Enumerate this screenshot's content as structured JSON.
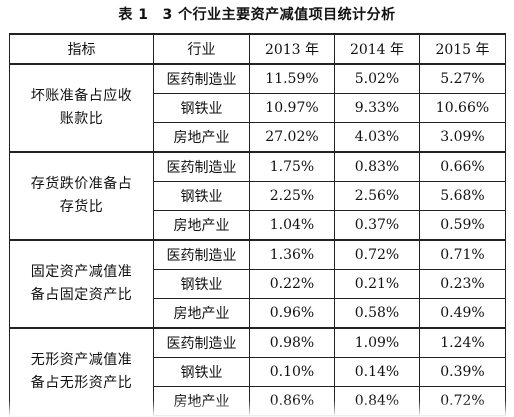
{
  "caption": {
    "label": "表 1",
    "title": "3 个行业主要资产减值项目统计分析"
  },
  "chart_data": {
    "type": "table",
    "title": "3 个行业主要资产减值项目统计分析",
    "headers": [
      "指标",
      "行业",
      "2013 年",
      "2014 年",
      "2015 年"
    ],
    "groups": [
      {
        "metric": "坏账准备占应收账款比",
        "rows": [
          {
            "industry": "医药制造业",
            "values": [
              "11.59%",
              "5.02%",
              "5.27%"
            ]
          },
          {
            "industry": "钢铁业",
            "values": [
              "10.97%",
              "9.33%",
              "10.66%"
            ]
          },
          {
            "industry": "房地产业",
            "values": [
              "27.02%",
              "4.03%",
              "3.09%"
            ]
          }
        ]
      },
      {
        "metric": "存货跌价准备占存货比",
        "rows": [
          {
            "industry": "医药制造业",
            "values": [
              "1.75%",
              "0.83%",
              "0.66%"
            ]
          },
          {
            "industry": "钢铁业",
            "values": [
              "2.25%",
              "2.56%",
              "5.68%"
            ]
          },
          {
            "industry": "房地产业",
            "values": [
              "1.04%",
              "0.37%",
              "0.59%"
            ]
          }
        ]
      },
      {
        "metric": "固定资产减值准备占固定资产比",
        "rows": [
          {
            "industry": "医药制造业",
            "values": [
              "1.36%",
              "0.72%",
              "0.71%"
            ]
          },
          {
            "industry": "钢铁业",
            "values": [
              "0.22%",
              "0.21%",
              "0.23%"
            ]
          },
          {
            "industry": "房地产业",
            "values": [
              "0.96%",
              "0.58%",
              "0.49%"
            ]
          }
        ]
      },
      {
        "metric": "无形资产减值准备占无形资产比",
        "rows": [
          {
            "industry": "医药制造业",
            "values": [
              "0.98%",
              "1.09%",
              "1.24%"
            ]
          },
          {
            "industry": "钢铁业",
            "values": [
              "0.10%",
              "0.14%",
              "0.39%"
            ]
          },
          {
            "industry": "房地产业",
            "values": [
              "0.86%",
              "0.84%",
              "0.72%"
            ]
          }
        ]
      }
    ]
  }
}
